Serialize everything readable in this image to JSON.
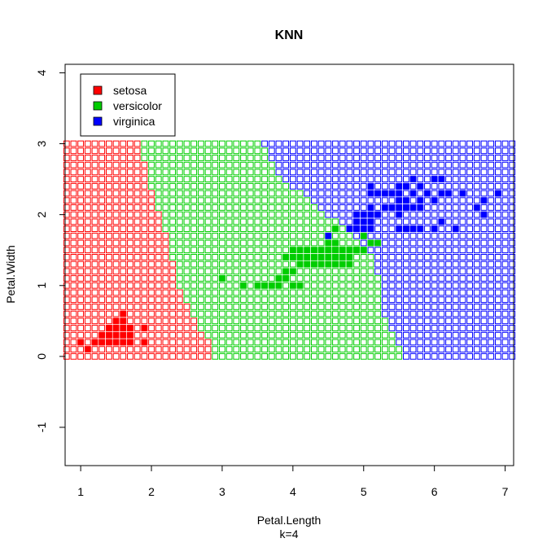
{
  "chart_data": {
    "type": "scatter",
    "title": "KNN",
    "xlabel": "Petal.Length",
    "subtitle": "k=4",
    "ylabel": "Petal.Width",
    "xlim": [
      0.78,
      7.12
    ],
    "ylim": [
      -1.54,
      4.12
    ],
    "x_ticks": [
      1,
      2,
      3,
      4,
      5,
      6,
      7
    ],
    "y_ticks": [
      -1,
      0,
      1,
      2,
      3,
      4
    ],
    "legend_position": "top-left",
    "legend": [
      {
        "name": "setosa",
        "color": "#ff0000"
      },
      {
        "name": "versicolor",
        "color": "#00cd00"
      },
      {
        "name": "virginica",
        "color": "#0000ff"
      }
    ],
    "grid": {
      "x_start": 0.8,
      "x_end": 7.1,
      "x_step": 0.1,
      "y_start": 0.0,
      "y_end": 3.0,
      "y_step": 0.1,
      "boundary_setosa_versicolor": [
        [
          0.0,
          2.9
        ],
        [
          0.2,
          2.85
        ],
        [
          0.4,
          2.7
        ],
        [
          0.6,
          2.6
        ],
        [
          0.8,
          2.5
        ],
        [
          1.0,
          2.4
        ],
        [
          1.2,
          2.35
        ],
        [
          1.4,
          2.3
        ],
        [
          1.6,
          2.25
        ],
        [
          1.8,
          2.2
        ],
        [
          2.0,
          2.15
        ],
        [
          2.2,
          2.05
        ],
        [
          2.4,
          2.0
        ],
        [
          2.6,
          1.95
        ],
        [
          2.8,
          1.9
        ],
        [
          3.0,
          1.85
        ]
      ],
      "boundary_versicolor_virginica": [
        [
          0.0,
          5.55
        ],
        [
          0.2,
          5.5
        ],
        [
          0.4,
          5.4
        ],
        [
          0.6,
          5.3
        ],
        [
          0.8,
          5.25
        ],
        [
          1.0,
          5.25
        ],
        [
          1.2,
          5.2
        ],
        [
          1.4,
          5.15
        ],
        [
          1.6,
          5.0
        ],
        [
          1.8,
          4.75
        ],
        [
          2.0,
          4.5
        ],
        [
          2.2,
          4.3
        ],
        [
          2.4,
          4.0
        ],
        [
          2.6,
          3.8
        ],
        [
          2.8,
          3.7
        ],
        [
          3.0,
          3.6
        ]
      ]
    },
    "series": [
      {
        "name": "setosa",
        "color": "#ff0000",
        "x": [
          1.0,
          1.1,
          1.2,
          1.3,
          1.4,
          1.5,
          1.6,
          1.7,
          1.9,
          1.3,
          1.4,
          1.5,
          1.6,
          1.7,
          1.9,
          1.4,
          1.5,
          1.6,
          1.7,
          1.5,
          1.6,
          1.6
        ],
        "y": [
          0.2,
          0.1,
          0.2,
          0.2,
          0.2,
          0.2,
          0.2,
          0.2,
          0.2,
          0.3,
          0.3,
          0.3,
          0.3,
          0.3,
          0.4,
          0.4,
          0.4,
          0.4,
          0.4,
          0.5,
          0.5,
          0.6
        ]
      },
      {
        "name": "versicolor",
        "color": "#00cd00",
        "x": [
          3.0,
          3.3,
          3.5,
          3.6,
          3.7,
          3.8,
          3.9,
          4.0,
          3.9,
          4.0,
          4.1,
          4.2,
          4.3,
          4.4,
          4.5,
          4.6,
          4.7,
          4.8,
          3.9,
          4.0,
          4.1,
          4.2,
          4.3,
          4.4,
          4.5,
          4.6,
          4.7,
          4.8,
          4.0,
          4.1,
          4.2,
          4.3,
          4.4,
          4.5,
          4.6,
          4.7,
          4.8,
          4.9,
          4.7,
          4.9,
          5.0,
          4.5,
          4.6,
          4.7,
          4.8,
          4.9,
          5.0,
          5.1,
          5.2,
          4.5,
          4.6,
          5.0,
          4.6,
          4.8,
          5.1,
          3.8,
          4.1,
          4.5,
          5.0
        ],
        "y": [
          1.1,
          1.0,
          1.0,
          1.0,
          1.0,
          1.0,
          1.1,
          1.0,
          1.2,
          1.2,
          1.3,
          1.3,
          1.3,
          1.3,
          1.3,
          1.3,
          1.3,
          1.3,
          1.4,
          1.4,
          1.4,
          1.4,
          1.4,
          1.4,
          1.4,
          1.4,
          1.4,
          1.4,
          1.5,
          1.5,
          1.5,
          1.5,
          1.5,
          1.5,
          1.5,
          1.5,
          1.5,
          1.5,
          1.4,
          1.5,
          1.5,
          1.5,
          1.5,
          1.5,
          1.5,
          1.5,
          1.5,
          1.6,
          1.6,
          1.6,
          1.6,
          1.7,
          1.8,
          1.8,
          1.6,
          1.1,
          1.0,
          1.7,
          1.7
        ]
      },
      {
        "name": "virginica",
        "color": "#0000ff",
        "x": [
          4.5,
          4.8,
          4.9,
          5.0,
          5.1,
          4.9,
          5.1,
          5.6,
          5.8,
          4.8,
          4.9,
          5.1,
          5.5,
          5.6,
          5.7,
          6.0,
          6.3,
          4.9,
          5.0,
          5.1,
          5.2,
          5.5,
          6.1,
          5.0,
          5.1,
          5.2,
          5.3,
          5.4,
          5.5,
          5.6,
          5.7,
          5.8,
          6.7,
          5.1,
          5.2,
          5.4,
          5.6,
          5.8,
          6.0,
          6.6,
          5.1,
          5.4,
          5.5,
          5.6,
          5.9,
          6.1,
          6.4,
          6.7,
          6.9,
          5.2,
          5.3,
          5.5,
          5.6,
          5.7,
          5.8,
          6.0,
          5.5,
          5.7,
          6.1,
          6.2
        ],
        "y": [
          1.7,
          1.8,
          1.8,
          1.8,
          1.8,
          1.9,
          1.9,
          1.8,
          1.8,
          1.8,
          1.8,
          1.9,
          1.8,
          1.8,
          1.8,
          1.8,
          1.8,
          2.0,
          2.0,
          2.0,
          2.0,
          2.0,
          1.9,
          1.9,
          2.1,
          2.0,
          2.1,
          2.1,
          2.1,
          2.1,
          2.1,
          2.1,
          2.0,
          2.3,
          2.3,
          2.1,
          2.2,
          2.2,
          2.2,
          2.1,
          2.4,
          2.3,
          2.3,
          2.4,
          2.3,
          2.3,
          2.3,
          2.2,
          2.3,
          2.3,
          2.3,
          2.4,
          2.4,
          2.5,
          2.4,
          2.5,
          2.2,
          2.3,
          2.5,
          2.3
        ]
      }
    ]
  }
}
